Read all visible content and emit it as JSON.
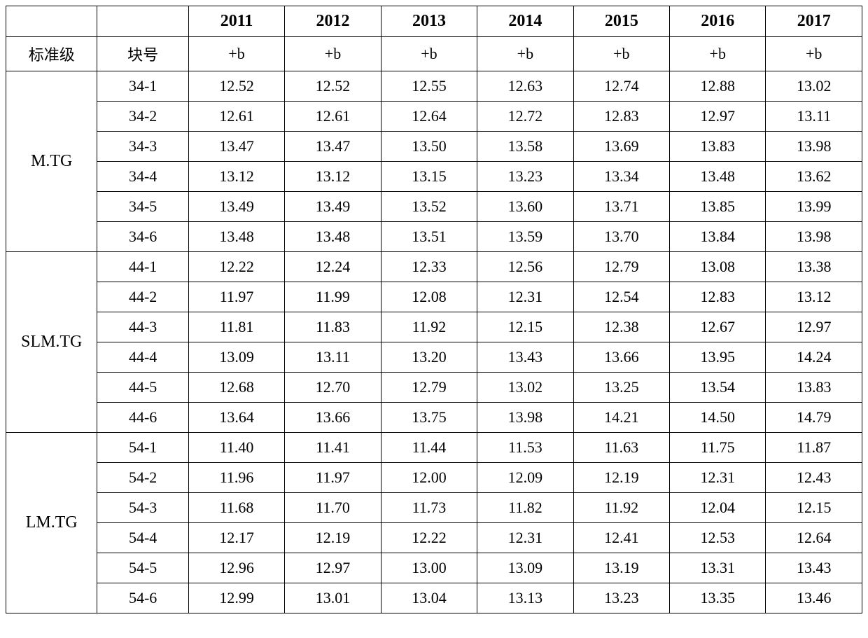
{
  "table": {
    "type": "table",
    "background_color": "#ffffff",
    "border_color": "#000000",
    "border_width": 1.5,
    "font_family": "Times New Roman",
    "header_fontsize": 24,
    "cell_fontsize": 22,
    "text_color": "#000000",
    "columns": {
      "group_label": "标准级",
      "block_label": "块号",
      "years": [
        "2011",
        "2012",
        "2013",
        "2014",
        "2015",
        "2016",
        "2017"
      ],
      "year_sublabel": "+b"
    },
    "groups": [
      {
        "name": "M.TG",
        "rows": [
          {
            "block": "34-1",
            "values": [
              "12.52",
              "12.52",
              "12.55",
              "12.63",
              "12.74",
              "12.88",
              "13.02"
            ]
          },
          {
            "block": "34-2",
            "values": [
              "12.61",
              "12.61",
              "12.64",
              "12.72",
              "12.83",
              "12.97",
              "13.11"
            ]
          },
          {
            "block": "34-3",
            "values": [
              "13.47",
              "13.47",
              "13.50",
              "13.58",
              "13.69",
              "13.83",
              "13.98"
            ]
          },
          {
            "block": "34-4",
            "values": [
              "13.12",
              "13.12",
              "13.15",
              "13.23",
              "13.34",
              "13.48",
              "13.62"
            ]
          },
          {
            "block": "34-5",
            "values": [
              "13.49",
              "13.49",
              "13.52",
              "13.60",
              "13.71",
              "13.85",
              "13.99"
            ]
          },
          {
            "block": "34-6",
            "values": [
              "13.48",
              "13.48",
              "13.51",
              "13.59",
              "13.70",
              "13.84",
              "13.98"
            ]
          }
        ]
      },
      {
        "name": "SLM.TG",
        "rows": [
          {
            "block": "44-1",
            "values": [
              "12.22",
              "12.24",
              "12.33",
              "12.56",
              "12.79",
              "13.08",
              "13.38"
            ]
          },
          {
            "block": "44-2",
            "values": [
              "11.97",
              "11.99",
              "12.08",
              "12.31",
              "12.54",
              "12.83",
              "13.12"
            ]
          },
          {
            "block": "44-3",
            "values": [
              "11.81",
              "11.83",
              "11.92",
              "12.15",
              "12.38",
              "12.67",
              "12.97"
            ]
          },
          {
            "block": "44-4",
            "values": [
              "13.09",
              "13.11",
              "13.20",
              "13.43",
              "13.66",
              "13.95",
              "14.24"
            ]
          },
          {
            "block": "44-5",
            "values": [
              "12.68",
              "12.70",
              "12.79",
              "13.02",
              "13.25",
              "13.54",
              "13.83"
            ]
          },
          {
            "block": "44-6",
            "values": [
              "13.64",
              "13.66",
              "13.75",
              "13.98",
              "14.21",
              "14.50",
              "14.79"
            ]
          }
        ]
      },
      {
        "name": "LM.TG",
        "rows": [
          {
            "block": "54-1",
            "values": [
              "11.40",
              "11.41",
              "11.44",
              "11.53",
              "11.63",
              "11.75",
              "11.87"
            ]
          },
          {
            "block": "54-2",
            "values": [
              "11.96",
              "11.97",
              "12.00",
              "12.09",
              "12.19",
              "12.31",
              "12.43"
            ]
          },
          {
            "block": "54-3",
            "values": [
              "11.68",
              "11.70",
              "11.73",
              "11.82",
              "11.92",
              "12.04",
              "12.15"
            ]
          },
          {
            "block": "54-4",
            "values": [
              "12.17",
              "12.19",
              "12.22",
              "12.31",
              "12.41",
              "12.53",
              "12.64"
            ]
          },
          {
            "block": "54-5",
            "values": [
              "12.96",
              "12.97",
              "13.00",
              "13.09",
              "13.19",
              "13.31",
              "13.43"
            ]
          },
          {
            "block": "54-6",
            "values": [
              "12.99",
              "13.01",
              "13.04",
              "13.13",
              "13.23",
              "13.35",
              "13.46"
            ]
          }
        ]
      }
    ]
  }
}
